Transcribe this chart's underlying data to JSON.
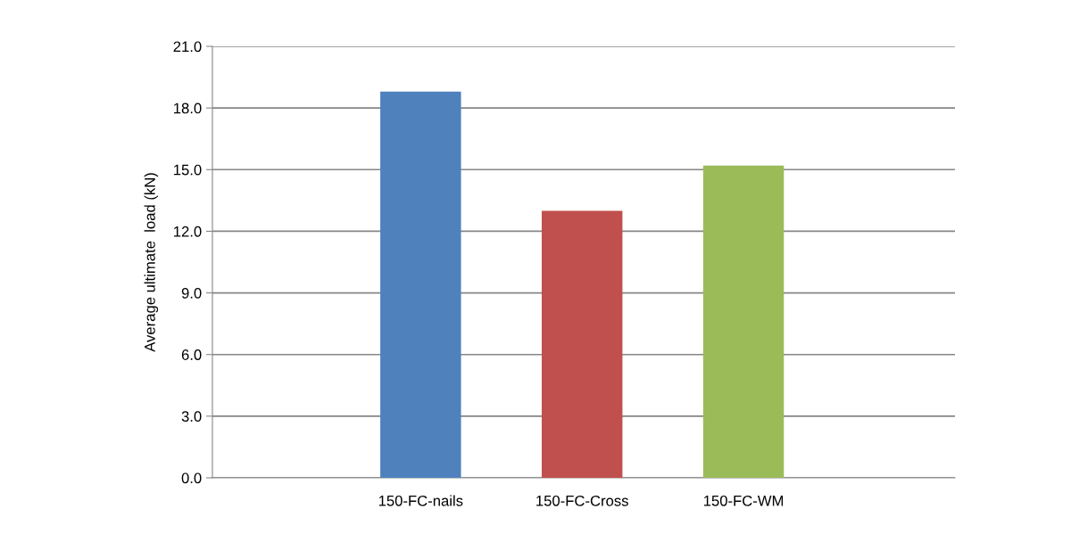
{
  "chart_data": {
    "type": "bar",
    "ylabel": "Average ultimate  load (kN)",
    "categories": [
      "150-FC-nails",
      "150-FC-Cross",
      "150-FC-WM"
    ],
    "values": [
      18.8,
      13.0,
      15.2
    ],
    "colors": [
      "#4f81bd",
      "#c0504d",
      "#9bbb59"
    ],
    "ylim": [
      0,
      21
    ],
    "yticks": [
      {
        "value": 0,
        "label": "0.0"
      },
      {
        "value": 3,
        "label": "3.0"
      },
      {
        "value": 6,
        "label": "6.0"
      },
      {
        "value": 9,
        "label": "9.0"
      },
      {
        "value": 12,
        "label": "12.0"
      },
      {
        "value": 15,
        "label": "15.0"
      },
      {
        "value": 18,
        "label": "18.0"
      },
      {
        "value": 21,
        "label": "21.0"
      }
    ],
    "grid": "y",
    "legend": false
  }
}
